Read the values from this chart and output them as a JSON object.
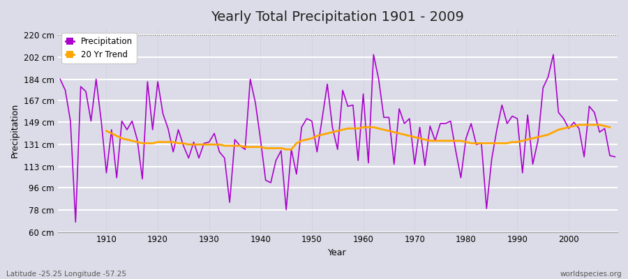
{
  "title": "Yearly Total Precipitation 1901 - 2009",
  "xlabel": "Year",
  "ylabel": "Precipitation",
  "lat_lon_label": "Latitude -25.25 Longitude -57.25",
  "source_label": "worldspecies.org",
  "years": [
    1901,
    1902,
    1903,
    1904,
    1905,
    1906,
    1907,
    1908,
    1909,
    1910,
    1911,
    1912,
    1913,
    1914,
    1915,
    1916,
    1917,
    1918,
    1919,
    1920,
    1921,
    1922,
    1923,
    1924,
    1925,
    1926,
    1927,
    1928,
    1929,
    1930,
    1931,
    1932,
    1933,
    1934,
    1935,
    1936,
    1937,
    1938,
    1939,
    1940,
    1941,
    1942,
    1943,
    1944,
    1945,
    1946,
    1947,
    1948,
    1949,
    1950,
    1951,
    1952,
    1953,
    1954,
    1955,
    1956,
    1957,
    1958,
    1959,
    1960,
    1961,
    1962,
    1963,
    1964,
    1965,
    1966,
    1967,
    1968,
    1969,
    1970,
    1971,
    1972,
    1973,
    1974,
    1975,
    1976,
    1977,
    1978,
    1979,
    1980,
    1981,
    1982,
    1983,
    1984,
    1985,
    1986,
    1987,
    1988,
    1989,
    1990,
    1991,
    1992,
    1993,
    1994,
    1995,
    1996,
    1997,
    1998,
    1999,
    2000,
    2001,
    2002,
    2003,
    2004,
    2005,
    2006,
    2007,
    2008,
    2009
  ],
  "precip": [
    184,
    175,
    150,
    68,
    178,
    174,
    150,
    184,
    150,
    108,
    143,
    104,
    150,
    143,
    150,
    135,
    103,
    182,
    143,
    182,
    156,
    144,
    125,
    143,
    130,
    120,
    133,
    120,
    132,
    133,
    140,
    125,
    120,
    84,
    135,
    130,
    127,
    184,
    165,
    135,
    102,
    100,
    118,
    126,
    78,
    127,
    107,
    145,
    152,
    150,
    125,
    152,
    180,
    145,
    127,
    175,
    162,
    163,
    118,
    172,
    116,
    204,
    184,
    153,
    153,
    115,
    160,
    148,
    152,
    115,
    145,
    114,
    146,
    134,
    148,
    148,
    150,
    126,
    104,
    136,
    148,
    131,
    132,
    79,
    119,
    143,
    163,
    148,
    154,
    152,
    108,
    155,
    115,
    134,
    177,
    186,
    204,
    157,
    152,
    144,
    149,
    144,
    121,
    162,
    157,
    141,
    144,
    122,
    121
  ],
  "trend": [
    null,
    null,
    null,
    null,
    null,
    null,
    null,
    null,
    null,
    142,
    140,
    138,
    136,
    135,
    134,
    133,
    132,
    132,
    132,
    133,
    133,
    133,
    133,
    132,
    132,
    131,
    131,
    131,
    131,
    131,
    131,
    131,
    130,
    130,
    130,
    130,
    129,
    129,
    129,
    129,
    128,
    128,
    128,
    128,
    127,
    127,
    132,
    134,
    135,
    136,
    138,
    139,
    140,
    141,
    142,
    143,
    144,
    144,
    144,
    145,
    145,
    145,
    144,
    143,
    142,
    141,
    140,
    139,
    138,
    137,
    136,
    135,
    134,
    134,
    134,
    134,
    134,
    134,
    134,
    133,
    132,
    132,
    132,
    132,
    132,
    132,
    132,
    132,
    133,
    133,
    134,
    135,
    136,
    137,
    138,
    139,
    141,
    143,
    144,
    145,
    146,
    147,
    147,
    147,
    147,
    147,
    146,
    145,
    null
  ],
  "precip_color": "#AA00CC",
  "trend_color": "#FFA500",
  "background_color": "#DCDCE8",
  "plot_bg_color": "#DCDCE8",
  "ylim": [
    60,
    225
  ],
  "yticks": [
    60,
    78,
    96,
    113,
    131,
    149,
    167,
    184,
    202,
    220
  ],
  "ytick_labels": [
    "60 cm",
    "78 cm",
    "96 cm",
    "113 cm",
    "131 cm",
    "149 cm",
    "167 cm",
    "184 cm",
    "202 cm",
    "220 cm"
  ],
  "xticks": [
    1910,
    1920,
    1930,
    1940,
    1950,
    1960,
    1970,
    1980,
    1990,
    2000
  ],
  "title_fontsize": 14,
  "axis_label_fontsize": 9,
  "tick_fontsize": 8.5,
  "grid_color": "#C8C8D8",
  "spine_color": "#999999"
}
